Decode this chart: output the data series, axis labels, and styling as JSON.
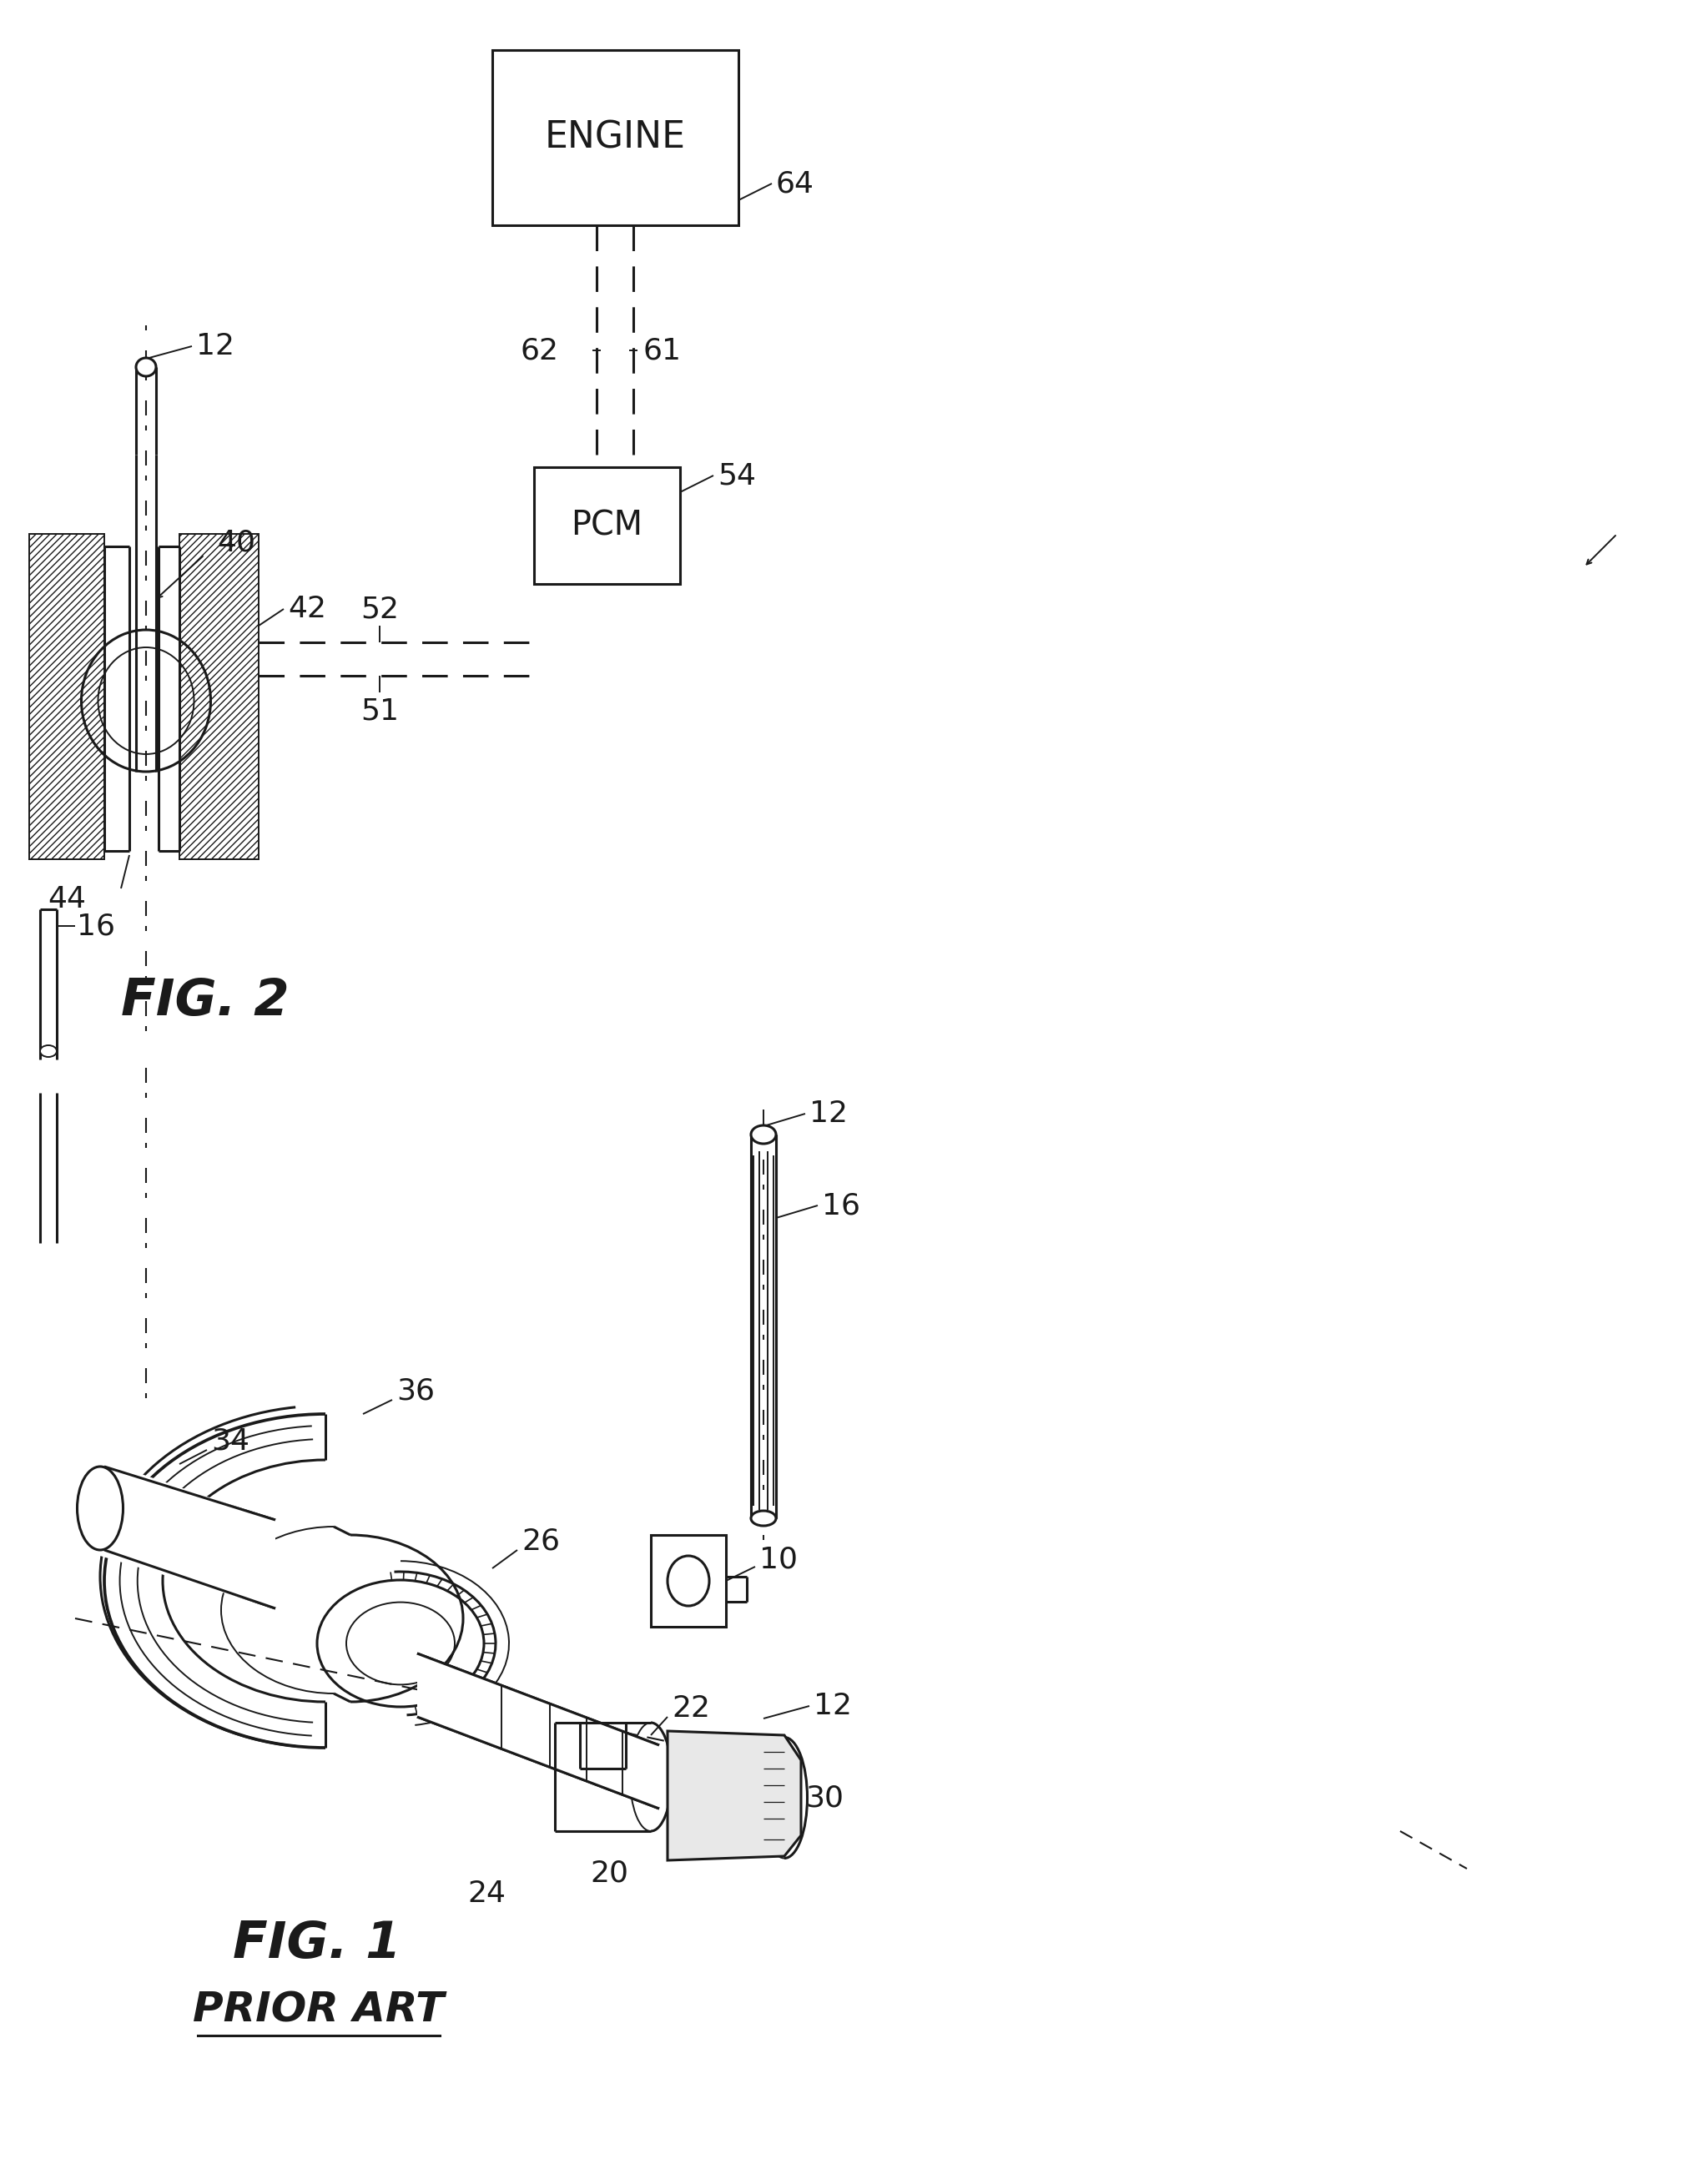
{
  "fig_width": 20.24,
  "fig_height": 26.18,
  "bg_color": "#ffffff",
  "line_color": "#1a1a1a",
  "fig1_title": "FIG. 1",
  "fig1_subtitle": "PRIOR ART",
  "fig2_title": "FIG. 2",
  "engine_label": "ENGINE",
  "pcm_label": "PCM",
  "fs_label": 26,
  "fs_title": 44,
  "fs_subtitle": 36
}
